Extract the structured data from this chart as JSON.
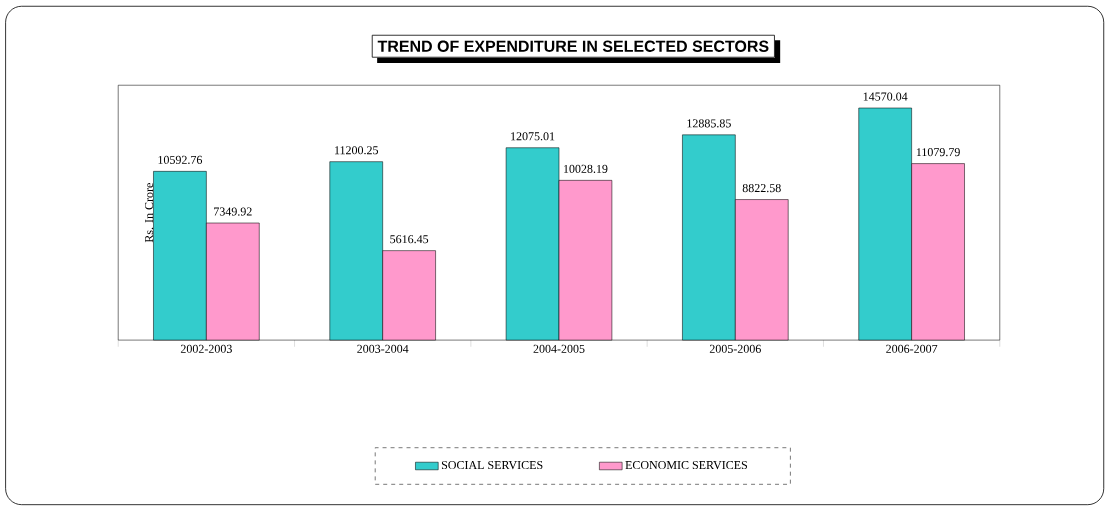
{
  "chart_data": {
    "type": "bar",
    "title": "TREND OF EXPENDITURE IN SELECTED SECTORS",
    "ylabel": "Rs. In Crore",
    "categories": [
      "2002-2003",
      "2003-2004",
      "2004-2005",
      "2005-2006",
      "2006-2007"
    ],
    "series": [
      {
        "name": "SOCIAL SERVICES",
        "color": "#33cccc",
        "values": [
          10592.76,
          11200.25,
          12075.01,
          12885.85,
          14570.04
        ]
      },
      {
        "name": "ECONOMIC SERVICES",
        "color": "#ff99cc",
        "values": [
          7349.92,
          5616.45,
          10028.19,
          8822.58,
          11079.79
        ]
      }
    ],
    "ylim": [
      0,
      16000
    ],
    "tick_labels": "x",
    "data_labels": true,
    "legend": "bottom"
  }
}
